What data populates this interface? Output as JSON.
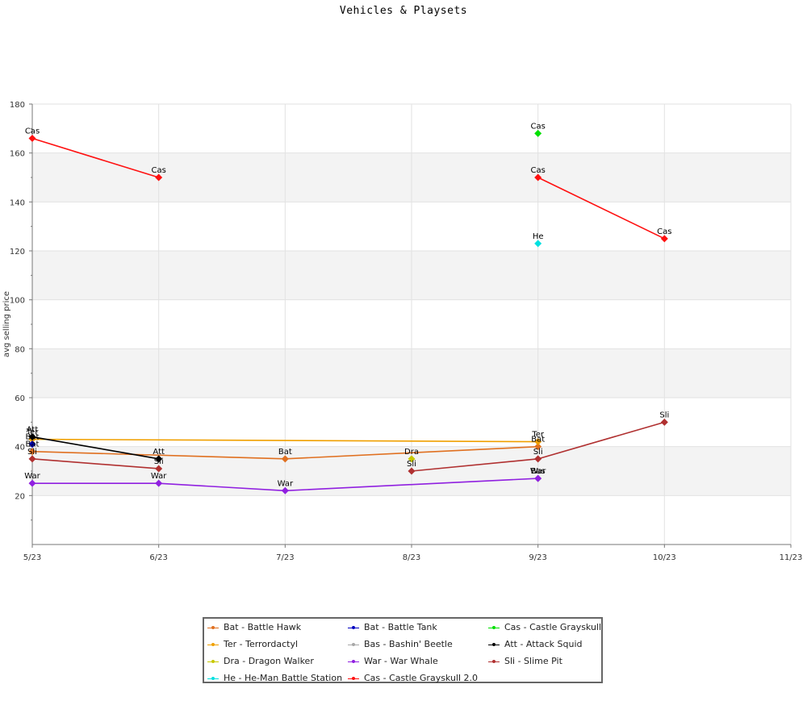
{
  "chart_data": {
    "type": "line",
    "title": "Vehicles & Playsets",
    "xlabel": "",
    "ylabel": "avg selling price",
    "x_ticks": [
      "5/23",
      "6/23",
      "7/23",
      "8/23",
      "9/23",
      "10/23",
      "11/23"
    ],
    "y_ticks": [
      "20",
      "40",
      "60",
      "80",
      "100",
      "120",
      "140",
      "160",
      "180"
    ],
    "ylim": [
      0,
      180
    ],
    "grid": "horizontal bands and vertical gridlines",
    "legend_position": "bottom",
    "series": [
      {
        "name": "Bat - Battle Hawk",
        "short": "Bat",
        "color": "#e07020",
        "points": [
          {
            "x": "5/23",
            "y": 38
          },
          {
            "x": "7/23",
            "y": 35
          },
          {
            "x": "9/23",
            "y": 40
          }
        ]
      },
      {
        "name": "Ter - Terrordactyl",
        "short": "Ter",
        "color": "#f0a000",
        "points": [
          {
            "x": "5/23",
            "y": 43
          },
          {
            "x": "9/23",
            "y": 42
          }
        ]
      },
      {
        "name": "Dra - Dragon Walker",
        "short": "Dra",
        "color": "#c8c800",
        "points": [
          {
            "x": "8/23",
            "y": 35
          }
        ]
      },
      {
        "name": "He - He-Man Battle Station",
        "short": "He",
        "color": "#00e0e0",
        "points": [
          {
            "x": "9/23",
            "y": 123
          }
        ]
      },
      {
        "name": "Bat - Battle Tank",
        "short": "Bat",
        "color": "#0000c0",
        "points": [
          {
            "x": "5/23",
            "y": 41
          }
        ]
      },
      {
        "name": "Bas - Bashin' Beetle",
        "short": "Bas",
        "color": "#a8a8a8",
        "points": [
          {
            "x": "9/23",
            "y": 27
          }
        ]
      },
      {
        "name": "War - War Whale",
        "short": "War",
        "color": "#9020e0",
        "points": [
          {
            "x": "5/23",
            "y": 25
          },
          {
            "x": "6/23",
            "y": 25
          },
          {
            "x": "7/23",
            "y": 22
          },
          {
            "x": "9/23",
            "y": 27
          }
        ]
      },
      {
        "name": "Cas - Castle Grayskull 2.0",
        "short": "Cas",
        "color": "#ff1010",
        "points": [
          {
            "x": "5/23",
            "y": 166
          },
          {
            "x": "6/23",
            "y": 150
          },
          {
            "x": "9/23",
            "y": 150
          },
          {
            "x": "10/23",
            "y": 125
          }
        ],
        "segments": [
          [
            0,
            1
          ],
          [
            2,
            3
          ]
        ]
      },
      {
        "name": "Cas - Castle Grayskull",
        "short": "Cas",
        "color": "#00e000",
        "points": [
          {
            "x": "9/23",
            "y": 168
          }
        ]
      },
      {
        "name": "Att - Attack Squid",
        "short": "Att",
        "color": "#000000",
        "points": [
          {
            "x": "5/23",
            "y": 44
          },
          {
            "x": "6/23",
            "y": 35
          }
        ]
      },
      {
        "name": "Sli - Slime Pit",
        "short": "Sli",
        "color": "#b03030",
        "points": [
          {
            "x": "5/23",
            "y": 35
          },
          {
            "x": "6/23",
            "y": 31
          },
          {
            "x": "8/23",
            "y": 30
          },
          {
            "x": "9/23",
            "y": 35
          },
          {
            "x": "10/23",
            "y": 50
          }
        ],
        "segments": [
          [
            0,
            1
          ],
          [
            2,
            3
          ],
          [
            3,
            4
          ]
        ]
      }
    ]
  },
  "legend": [
    {
      "label": "Bat - Battle Hawk",
      "color": "#e07020"
    },
    {
      "label": "Bat - Battle Tank",
      "color": "#0000c0"
    },
    {
      "label": "Cas - Castle Grayskull",
      "color": "#00e000"
    },
    {
      "label": "Ter - Terrordactyl",
      "color": "#f0a000"
    },
    {
      "label": "Bas - Bashin' Beetle",
      "color": "#a8a8a8"
    },
    {
      "label": "Att - Attack Squid",
      "color": "#000000"
    },
    {
      "label": "Dra - Dragon Walker",
      "color": "#c8c800"
    },
    {
      "label": "War - War Whale",
      "color": "#9020e0"
    },
    {
      "label": "Sli - Slime Pit",
      "color": "#b03030"
    },
    {
      "label": "He - He-Man Battle Station",
      "color": "#00e0e0"
    },
    {
      "label": "Cas - Castle Grayskull 2.0",
      "color": "#ff1010"
    }
  ]
}
